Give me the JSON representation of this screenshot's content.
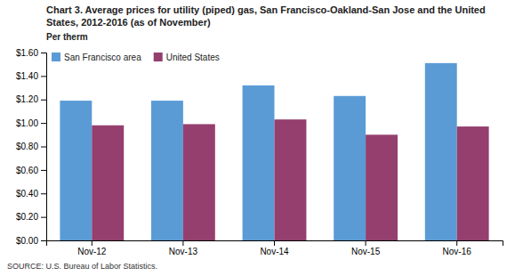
{
  "chart_data": {
    "type": "bar",
    "title": "Chart 3. Average prices for utility (piped) gas, San Francisco-Oakland-San Jose and the United States, 2012-2016 (as of November)",
    "y_label": "Per therm",
    "annotations": [
      "SOURCE: U.S. Bureau of Labor Statistics."
    ],
    "categories": [
      "Nov-12",
      "Nov-13",
      "Nov-14",
      "Nov-15",
      "Nov-16"
    ],
    "series": [
      {
        "name": "San Francisco area",
        "color": "#5B9BD5",
        "values": [
          1.19,
          1.19,
          1.32,
          1.23,
          1.51
        ]
      },
      {
        "name": "United States",
        "color": "#943F6E",
        "values": [
          0.98,
          0.99,
          1.03,
          0.9,
          0.97
        ]
      }
    ],
    "ylim": [
      0.0,
      1.6
    ],
    "yticks": [
      {
        "value": 0,
        "label": "$0.00"
      },
      {
        "value": 0.2,
        "label": "$0.20"
      },
      {
        "value": 0.4,
        "label": "$0.40"
      },
      {
        "value": 0.6,
        "label": "$0.60"
      },
      {
        "value": 0.8,
        "label": "$0.80"
      },
      {
        "value": 1,
        "label": "$1.00"
      },
      {
        "value": 1.2,
        "label": "$1.20"
      },
      {
        "value": 1.4,
        "label": "$1.40"
      },
      {
        "value": 1.6,
        "label": "$1.60"
      }
    ],
    "grid": false,
    "legend": "upper-left"
  }
}
